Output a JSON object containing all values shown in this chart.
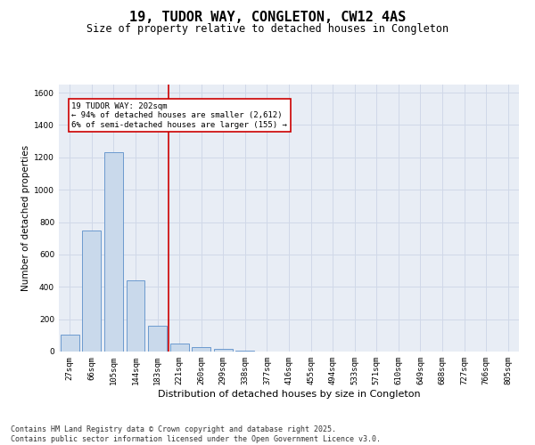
{
  "title": "19, TUDOR WAY, CONGLETON, CW12 4AS",
  "subtitle": "Size of property relative to detached houses in Congleton",
  "xlabel": "Distribution of detached houses by size in Congleton",
  "ylabel": "Number of detached properties",
  "categories": [
    "27sqm",
    "66sqm",
    "105sqm",
    "144sqm",
    "183sqm",
    "221sqm",
    "260sqm",
    "299sqm",
    "338sqm",
    "377sqm",
    "416sqm",
    "455sqm",
    "494sqm",
    "533sqm",
    "571sqm",
    "610sqm",
    "649sqm",
    "688sqm",
    "727sqm",
    "766sqm",
    "805sqm"
  ],
  "values": [
    105,
    750,
    1230,
    440,
    160,
    50,
    30,
    15,
    5,
    2,
    1,
    0,
    0,
    0,
    0,
    0,
    0,
    0,
    0,
    0,
    0
  ],
  "bar_color": "#c9d9eb",
  "bar_edge_color": "#5b8fc9",
  "vertical_line_color": "#cc0000",
  "annotation_text": "19 TUDOR WAY: 202sqm\n← 94% of detached houses are smaller (2,612)\n6% of semi-detached houses are larger (155) →",
  "annotation_box_color": "#cc0000",
  "ylim": [
    0,
    1650
  ],
  "yticks": [
    0,
    200,
    400,
    600,
    800,
    1000,
    1200,
    1400,
    1600
  ],
  "grid_color": "#d0d8e8",
  "background_color": "#e8edf5",
  "footnote": "Contains HM Land Registry data © Crown copyright and database right 2025.\nContains public sector information licensed under the Open Government Licence v3.0.",
  "title_fontsize": 11,
  "subtitle_fontsize": 8.5,
  "annotation_fontsize": 6.5,
  "footnote_fontsize": 6,
  "ylabel_fontsize": 7.5,
  "xlabel_fontsize": 8,
  "tick_fontsize": 6.5
}
